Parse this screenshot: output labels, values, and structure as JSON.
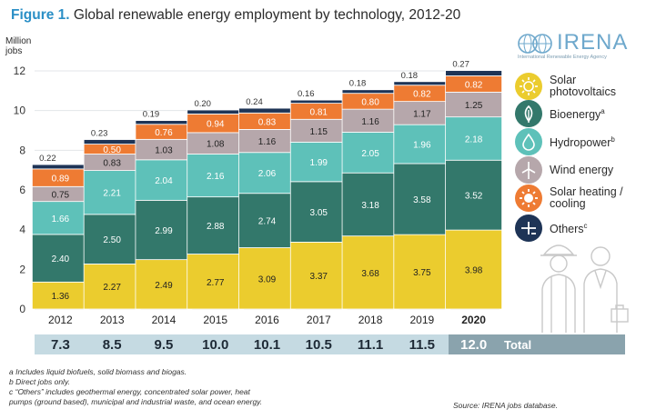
{
  "figure": {
    "number": "Figure 1.",
    "title": "Global renewable energy employment by technology, 2012-20"
  },
  "logo": {
    "name": "IRENA",
    "tagline": "International Renewable Energy Agency"
  },
  "colors": {
    "solar_pv": "#ebcc2e",
    "bioenergy": "#33786b",
    "hydropower": "#5ec1b9",
    "wind": "#b6a7ab",
    "solar_heating": "#ee7b33",
    "others": "#1e3456",
    "totals_band": "#c5dae2",
    "totals_highlight": "#8aa3ad"
  },
  "chart_data": {
    "type": "bar",
    "stacked": true,
    "ylabel": "Million\njobs",
    "ylim": [
      0,
      12
    ],
    "yticks": [
      0,
      2,
      4,
      6,
      8,
      10,
      12
    ],
    "categories": [
      "2012",
      "2013",
      "2014",
      "2015",
      "2016",
      "2017",
      "2018",
      "2019",
      "2020"
    ],
    "highlight_category": "2020",
    "series": [
      {
        "name": "Solar photovoltaics",
        "key": "solar_pv",
        "values": [
          1.36,
          2.27,
          2.49,
          2.77,
          3.09,
          3.37,
          3.68,
          3.75,
          3.98
        ]
      },
      {
        "name": "Bioenergy",
        "key": "bioenergy",
        "values": [
          2.4,
          2.5,
          2.99,
          2.88,
          2.74,
          3.05,
          3.18,
          3.58,
          3.52
        ]
      },
      {
        "name": "Hydropower",
        "key": "hydropower",
        "values": [
          1.66,
          2.21,
          2.04,
          2.16,
          2.06,
          1.99,
          2.05,
          1.96,
          2.18
        ]
      },
      {
        "name": "Wind energy",
        "key": "wind",
        "values": [
          0.75,
          0.83,
          1.03,
          1.08,
          1.16,
          1.15,
          1.16,
          1.17,
          1.25
        ]
      },
      {
        "name": "Solar heating / cooling",
        "key": "solar_heating",
        "values": [
          0.89,
          0.5,
          0.76,
          0.94,
          0.83,
          0.81,
          0.8,
          0.82,
          0.82
        ]
      },
      {
        "name": "Others",
        "key": "others",
        "values": [
          0.22,
          0.23,
          0.19,
          0.2,
          0.24,
          0.16,
          0.18,
          0.18,
          0.27
        ]
      }
    ],
    "totals": [
      "7.3",
      "8.5",
      "9.5",
      "10.0",
      "10.1",
      "10.5",
      "11.1",
      "11.5",
      "12.0"
    ],
    "totals_label": "Total"
  },
  "legend": [
    {
      "label": "Solar\nphotovoltaics",
      "sup": "",
      "icon": "sun-icon",
      "key": "solar_pv"
    },
    {
      "label": "Bioenergy",
      "sup": "a",
      "icon": "leaf-icon",
      "key": "bioenergy"
    },
    {
      "label": "Hydropower",
      "sup": "b",
      "icon": "water-drop-icon",
      "key": "hydropower"
    },
    {
      "label": "Wind energy",
      "sup": "",
      "icon": "wind-turbine-icon",
      "key": "wind"
    },
    {
      "label": "Solar heating /\ncooling",
      "sup": "",
      "icon": "sun-heat-icon",
      "key": "solar_heating"
    },
    {
      "label": "Others",
      "sup": "c",
      "icon": "plus-minus-icon",
      "key": "others"
    }
  ],
  "footnotes": [
    "a  Includes liquid biofuels, solid biomass and biogas.",
    "b  Direct jobs only.",
    "c  “Others” includes geothermal energy, concentrated solar power, heat",
    "    pumps (ground based), municipal and industrial waste, and ocean energy."
  ],
  "source": "Source: IRENA jobs database."
}
